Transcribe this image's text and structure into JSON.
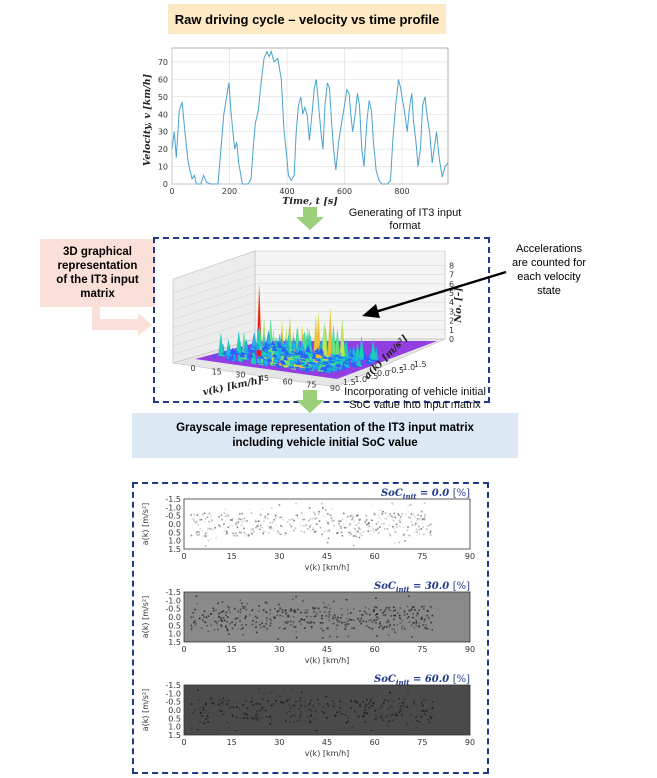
{
  "top_title": "Raw driving cycle – velocity vs time profile",
  "velocity_chart": {
    "ylabel": "Velocity, v [km/h]",
    "xlabel": "Time, t [s]",
    "y_ticks": [
      "0",
      "10",
      "20",
      "30",
      "40",
      "50",
      "60",
      "70"
    ],
    "x_ticks": [
      "0",
      "200",
      "400",
      "600",
      "800"
    ]
  },
  "step1_caption": [
    "Generating of IT3 input",
    "format"
  ],
  "step2_caption": [
    "Incorporating of vehicle initial",
    "SoC value into input matrix"
  ],
  "pink_label": [
    "3D graphical",
    "representation",
    "of the IT3 input",
    "matrix"
  ],
  "side_note": [
    "Accelerations",
    "are counted for",
    "each velocity",
    "state"
  ],
  "surface_chart": {
    "z_label": "No. [–]",
    "z_ticks": [
      "0",
      "1",
      "2",
      "3",
      "4",
      "5",
      "6",
      "7",
      "8"
    ],
    "v_label": "v(k) [km/h]",
    "v_ticks": [
      "0",
      "15",
      "30",
      "45",
      "60",
      "75",
      "90"
    ],
    "a_label": "a(k) [m/s²]",
    "a_ticks": [
      "1.5",
      "1.0",
      "0.5",
      "0.0",
      "-0.5",
      "-1.0",
      "-1.5"
    ]
  },
  "gray_title": [
    "Grayscale image representation of the IT3 input matrix",
    "including vehicle initial SoC value"
  ],
  "grayscale_panels": [
    {
      "soc_prefix": "SoC",
      "soc_sub": "init",
      "soc_value": " = 0.0 ",
      "soc_unit": "[%]",
      "bg": "#ffffff"
    },
    {
      "soc_prefix": "SoC",
      "soc_sub": "init",
      "soc_value": " = 30.0 ",
      "soc_unit": "[%]",
      "bg": "#8a8a8a"
    },
    {
      "soc_prefix": "SoC",
      "soc_sub": "init",
      "soc_value": " = 60.0 ",
      "soc_unit": "[%]",
      "bg": "#4a4a4a"
    }
  ],
  "panel_axes": {
    "ylabel": "a(k) [m/s²]",
    "xlabel": "v(k) [km/h]",
    "y_ticks": [
      "-1.5",
      "-1.0",
      "-0.5",
      "0.0",
      "0.5",
      "1.0",
      "1.5"
    ],
    "x_ticks": [
      "0",
      "15",
      "30",
      "45",
      "60",
      "75",
      "90"
    ]
  },
  "colors": {
    "top_title_bg": "#fde9c3",
    "pink_bg": "#fbe0da",
    "gray_title_bg": "#dce8f4",
    "dashed_border": "#1f3a8a",
    "arrow_green": "#9ccf7a",
    "line_blue": "#4aa3cf"
  }
}
